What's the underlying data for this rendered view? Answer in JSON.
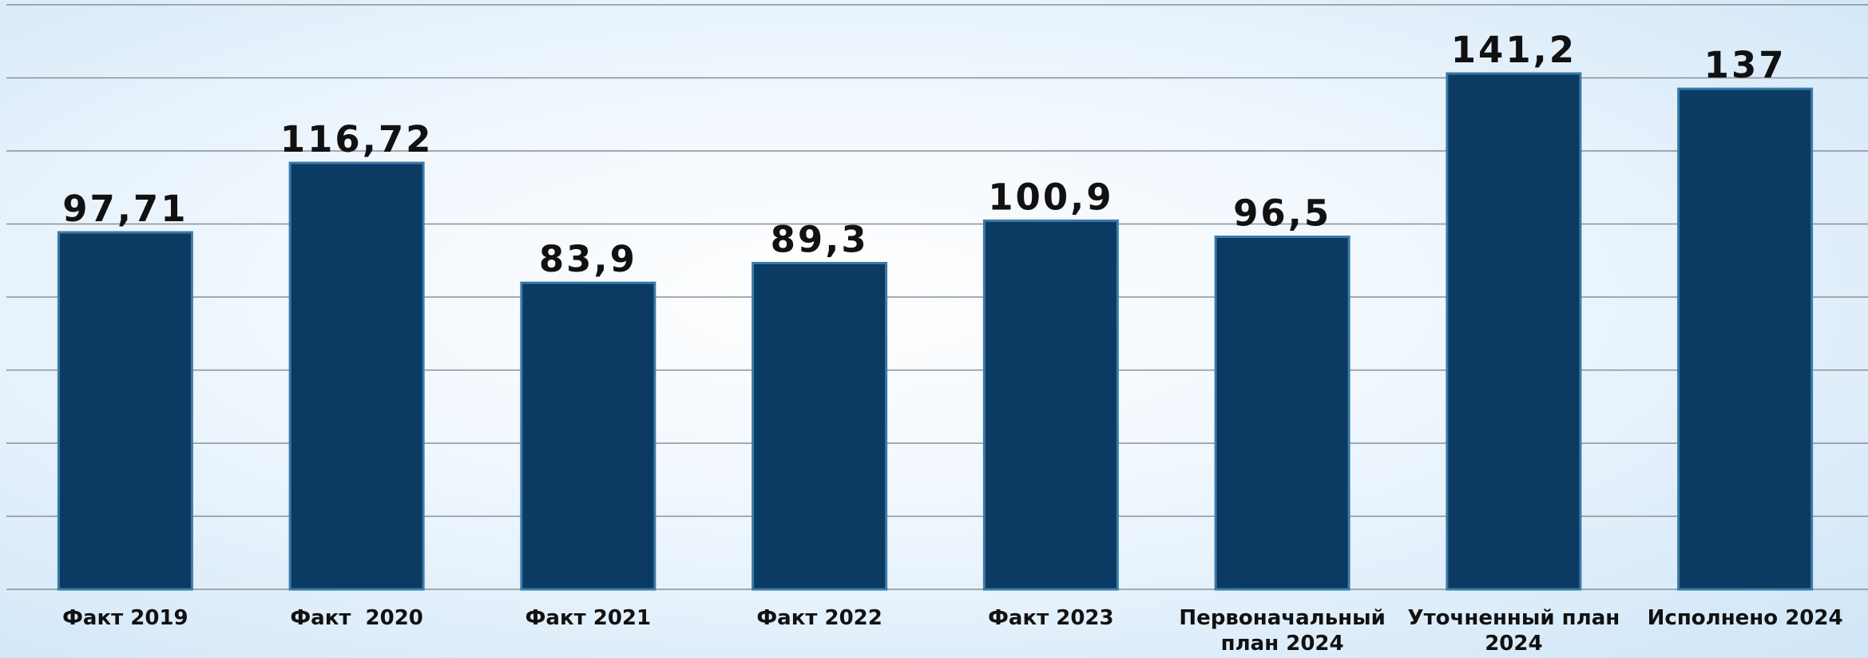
{
  "chart_data": {
    "type": "bar",
    "categories": [
      "Факт 2019",
      "Факт  2020",
      "Факт 2021",
      "Факт 2022",
      "Факт 2023",
      "Первоначальный план 2024",
      "Уточненный план 2024",
      "Исполнено 2024"
    ],
    "values": [
      97.71,
      116.72,
      83.9,
      89.3,
      100.9,
      96.5,
      141.2,
      137
    ],
    "value_labels": [
      "97,71",
      "116,72",
      "83,9",
      "89,3",
      "100,9",
      "96,5",
      "141,2",
      "137"
    ],
    "color": "#0b3a62",
    "ylim": [
      0,
      160
    ],
    "yticks": [
      0,
      20,
      40,
      60,
      80,
      100,
      120,
      140,
      160
    ],
    "grid": true
  }
}
